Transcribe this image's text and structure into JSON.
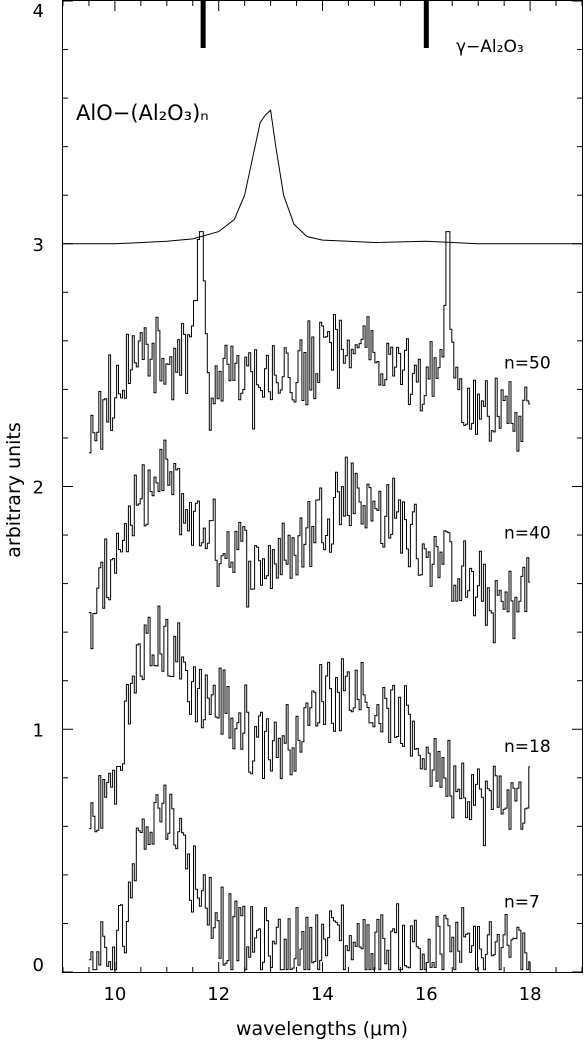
{
  "chart_data": {
    "type": "line",
    "xlabel": "wavelengths (μm)",
    "ylabel": "arbitrary units",
    "xlim": [
      9.0,
      19.0
    ],
    "ylim": [
      0.0,
      4.0
    ],
    "x_ticks": [
      10,
      12,
      14,
      16,
      18
    ],
    "y_ticks": [
      0,
      1,
      2,
      3,
      4
    ],
    "annotations": {
      "gamma_label": "γ−Al₂O₃",
      "cluster_label": "AlO−(Al₂O₃)ₙ"
    },
    "gamma_al2o3_lines": [
      11.7,
      16.0
    ],
    "reference_spectrum": {
      "name": "AlO−(Al₂O₃)ₙ",
      "x": [
        9.0,
        10.0,
        11.0,
        11.5,
        12.0,
        12.3,
        12.5,
        12.65,
        12.8,
        12.9,
        13.0,
        13.1,
        13.25,
        13.45,
        13.7,
        14.0,
        14.5,
        15.0,
        16.0,
        17.0,
        18.0,
        19.0
      ],
      "y": [
        3.0,
        3.0,
        3.01,
        3.02,
        3.05,
        3.1,
        3.2,
        3.35,
        3.5,
        3.53,
        3.55,
        3.4,
        3.2,
        3.08,
        3.03,
        3.015,
        3.01,
        3.005,
        3.01,
        3.0,
        3.0,
        3.0
      ]
    },
    "series": [
      {
        "name": "n=50",
        "x": [
          9.5,
          10.0,
          10.5,
          11.0,
          11.4,
          11.65,
          11.8,
          12.2,
          12.7,
          13.3,
          13.8,
          14.3,
          14.8,
          15.2,
          15.6,
          16.0,
          16.3,
          16.4,
          16.5,
          16.8,
          17.2,
          17.6,
          18.0
        ],
        "y": [
          2.2,
          2.4,
          2.55,
          2.5,
          2.55,
          3.05,
          2.4,
          2.5,
          2.4,
          2.45,
          2.5,
          2.55,
          2.6,
          2.5,
          2.45,
          2.4,
          2.6,
          3.05,
          2.45,
          2.35,
          2.3,
          2.3,
          2.3
        ]
      },
      {
        "name": "n=40",
        "x": [
          9.5,
          10.0,
          10.5,
          11.0,
          11.5,
          12.0,
          12.5,
          13.0,
          13.5,
          14.0,
          14.5,
          15.0,
          15.5,
          16.0,
          16.5,
          17.0,
          17.5,
          18.0
        ],
        "y": [
          1.4,
          1.75,
          1.9,
          2.05,
          1.85,
          1.75,
          1.7,
          1.7,
          1.75,
          1.9,
          2.0,
          1.9,
          1.85,
          1.75,
          1.65,
          1.55,
          1.5,
          1.6
        ]
      },
      {
        "name": "n=18",
        "x": [
          9.5,
          10.0,
          10.5,
          11.0,
          11.5,
          12.0,
          12.5,
          13.0,
          13.5,
          14.0,
          14.5,
          15.0,
          15.5,
          16.0,
          16.5,
          17.0,
          17.5,
          18.0
        ],
        "y": [
          0.6,
          0.8,
          1.35,
          1.35,
          1.15,
          1.1,
          1.0,
          0.95,
          0.95,
          1.15,
          1.2,
          1.1,
          1.0,
          0.9,
          0.8,
          0.7,
          0.7,
          0.72
        ]
      },
      {
        "name": "n=7",
        "x": [
          9.5,
          10.0,
          10.5,
          11.0,
          11.5,
          12.0,
          12.5,
          13.0,
          13.5,
          14.0,
          14.5,
          15.0,
          15.5,
          16.0,
          16.5,
          17.0,
          17.5,
          18.0
        ],
        "y": [
          0.02,
          0.05,
          0.6,
          0.7,
          0.4,
          0.2,
          0.12,
          0.1,
          0.1,
          0.15,
          0.12,
          0.1,
          0.12,
          0.1,
          0.1,
          0.08,
          0.08,
          0.08
        ]
      }
    ]
  }
}
